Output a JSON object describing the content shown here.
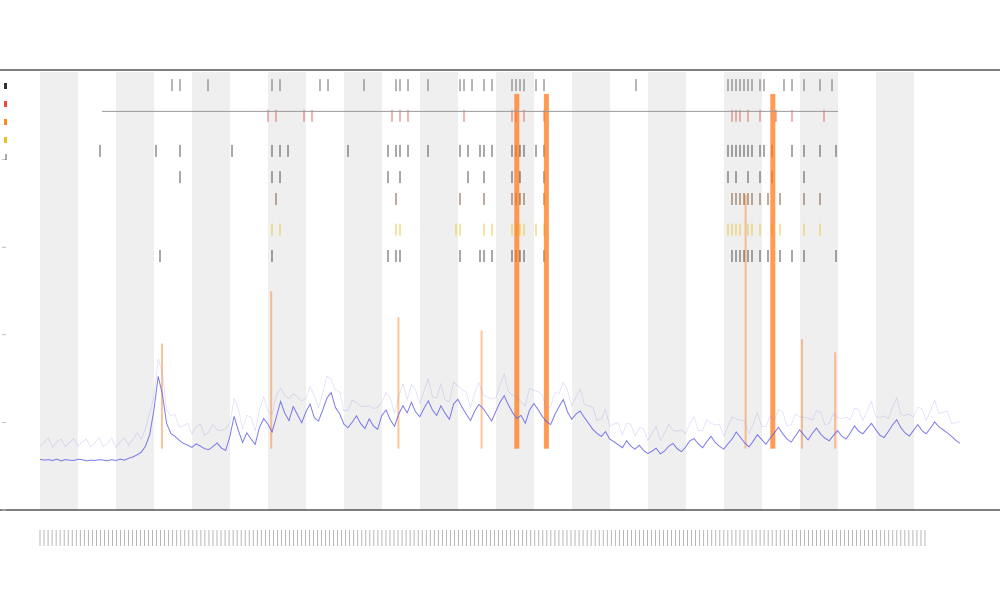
{
  "chart_data": {
    "type": "line",
    "title": "",
    "subtitles": [
      "",
      ""
    ],
    "xlabel": "",
    "ylabel": "",
    "grid": false,
    "legend_placement": "top-left",
    "colors": {
      "background": "#ffffff",
      "band_shade": "#efefef",
      "axis": "#333333",
      "threshold_line": "#9a9a9a",
      "main_series": "#5a5ae6",
      "tick_marks": "#555555",
      "ticks_red": "#e05040",
      "ticks_dark": "#333333",
      "ticks_orange": "#ff8c1a",
      "ticks_gold": "#e8c020",
      "ticks_brown": "#6b3a1a",
      "spike_series": "#ff7a1a"
    },
    "xlim": [
      0,
      230
    ],
    "ylim": [
      0,
      100
    ],
    "shaded_bands": [
      [
        0,
        9.5
      ],
      [
        19,
        28.5
      ],
      [
        38,
        47.5
      ],
      [
        57,
        66.5
      ],
      [
        76,
        85.5
      ],
      [
        95,
        104.5
      ],
      [
        114,
        123.5
      ],
      [
        133,
        142.5
      ],
      [
        152,
        161.5
      ],
      [
        171,
        180.5
      ],
      [
        190,
        199.5
      ],
      [
        209,
        218.5
      ]
    ],
    "threshold_y": 91,
    "threshold_x_range": [
      15.5,
      199.5
    ],
    "series": [
      {
        "name": "",
        "kind": "baseline",
        "values": [
          11.6,
          11.4,
          11.5,
          11.3,
          11.6,
          11.2,
          11.5,
          11.4,
          11.3,
          11.6,
          11.5,
          11.2,
          11.4,
          11.3,
          11.5,
          11.4,
          11.2,
          11.5,
          11.3,
          11.6,
          11.4,
          11.8,
          12.1,
          12.6,
          13.2,
          14.6,
          17.2,
          22.8,
          30.5,
          26.4,
          19.8,
          17.5,
          16.8,
          15.9,
          15.2,
          14.8,
          14.3,
          15.1,
          14.6,
          14.0,
          13.8,
          14.5,
          15.3,
          14.1,
          13.6,
          16.8,
          21.4,
          18.2,
          15.4,
          17.6,
          16.2,
          15.0,
          18.8,
          20.9,
          19.6,
          17.8,
          21.2,
          24.8,
          22.1,
          20.4,
          23.6,
          21.8,
          19.9,
          22.4,
          24.2,
          21.1,
          20.3,
          22.9,
          25.6,
          26.8,
          23.4,
          22.0,
          19.6,
          18.8,
          20.1,
          21.5,
          19.7,
          18.6,
          20.8,
          19.2,
          18.4,
          21.6,
          22.8,
          20.6,
          19.1,
          21.9,
          23.8,
          22.2,
          24.6,
          22.4,
          21.3,
          23.2,
          24.9,
          22.8,
          21.6,
          23.8,
          22.1,
          20.7,
          24.2,
          25.3,
          23.5,
          21.9,
          20.4,
          22.6,
          24.1,
          23.2,
          21.8,
          20.3,
          22.5,
          24.6,
          26.1,
          24.0,
          22.2,
          20.9,
          21.6,
          19.8,
          22.8,
          24.3,
          23.0,
          21.4,
          20.2,
          19.5,
          21.8,
          23.6,
          25.2,
          22.4,
          20.7,
          21.9,
          22.6,
          21.1,
          19.8,
          18.4,
          17.5,
          16.8,
          17.9,
          16.2,
          15.6,
          14.9,
          14.2,
          15.8,
          14.6,
          13.9,
          14.8,
          13.6,
          12.9,
          13.4,
          14.1,
          12.8,
          13.5,
          14.6,
          15.2,
          14.0,
          13.3,
          14.4,
          15.8,
          16.3,
          15.1,
          14.2,
          15.6,
          16.8,
          15.4,
          14.6,
          13.9,
          15.1,
          16.2,
          17.8,
          16.5,
          15.3,
          14.4,
          15.7,
          17.2,
          16.1,
          15.0,
          16.4,
          17.6,
          18.9,
          17.4,
          16.2,
          15.5,
          16.9,
          18.3,
          17.1,
          16.0,
          17.5,
          18.7,
          17.3,
          16.4,
          15.8,
          17.0,
          18.1,
          16.9,
          16.2,
          17.6,
          19.2,
          18.0,
          17.4,
          18.6,
          19.8,
          18.4,
          17.1,
          16.5,
          17.9,
          19.4,
          20.6,
          18.8,
          17.6,
          16.9,
          18.2,
          19.5,
          18.1,
          17.4,
          18.7,
          20.1,
          19.0,
          18.3,
          17.6,
          16.8,
          15.9,
          15.2
        ]
      },
      {
        "name": "",
        "kind": "spikes",
        "points": [
          [
            30.5,
            38
          ],
          [
            57.8,
            50
          ],
          [
            89.6,
            44
          ],
          [
            110.4,
            41
          ],
          [
            119.2,
            95
          ],
          [
            126.6,
            95
          ],
          [
            176.4,
            72
          ],
          [
            183.2,
            95
          ],
          [
            190.5,
            39
          ],
          [
            198.8,
            36
          ]
        ]
      }
    ],
    "tick_rows": [
      {
        "color": "#555555",
        "y": 97,
        "xs": [
          33,
          35,
          42,
          58,
          60,
          70,
          72,
          81,
          89,
          90,
          92,
          97,
          105,
          106,
          108,
          111,
          113,
          118,
          119,
          120,
          121,
          124,
          126,
          149,
          172,
          173,
          174,
          175,
          176,
          177,
          178,
          180,
          181,
          186,
          188,
          191,
          195,
          198
        ]
      },
      {
        "color": "#e05040",
        "y": 90,
        "xs": [
          57,
          59,
          66,
          68,
          88,
          90,
          92,
          106,
          118,
          119,
          121,
          126,
          173,
          174,
          175,
          177,
          180,
          184,
          188,
          196
        ]
      },
      {
        "color": "#333333",
        "y": 82,
        "xs": [
          15,
          29,
          35,
          48,
          58,
          60,
          62,
          77,
          87,
          89,
          90,
          92,
          97,
          105,
          107,
          110,
          111,
          113,
          118,
          119,
          120,
          121,
          124,
          126,
          172,
          173,
          174,
          175,
          176,
          177,
          178,
          180,
          181,
          183,
          188,
          191,
          195,
          199
        ]
      },
      {
        "color": "#333333",
        "y": 76,
        "xs": [
          35,
          58,
          60,
          87,
          90,
          107,
          111,
          118,
          120,
          126,
          172,
          174,
          177,
          180,
          183,
          191
        ]
      },
      {
        "color": "#6b3a1a",
        "y": 71,
        "xs": [
          59,
          89,
          105,
          111,
          118,
          119,
          120,
          121,
          126,
          173,
          174,
          175,
          176,
          177,
          178,
          180,
          182,
          185,
          191,
          195
        ]
      },
      {
        "color": "#e8c020",
        "y": 64,
        "xs": [
          58,
          60,
          89,
          90,
          104,
          105,
          111,
          113,
          118,
          119,
          120,
          121,
          124,
          126,
          172,
          173,
          174,
          175,
          177,
          178,
          180,
          183,
          185,
          191,
          195
        ]
      },
      {
        "color": "#333333",
        "y": 58,
        "xs": [
          30,
          58,
          87,
          89,
          90,
          105,
          110,
          111,
          113,
          118,
          119,
          120,
          121,
          126,
          173,
          174,
          175,
          176,
          177,
          178,
          180,
          182,
          185,
          188,
          191,
          199
        ]
      }
    ],
    "legend_entries": [
      "",
      "",
      "",
      ""
    ],
    "x_tick_labels": [],
    "y_tick_labels": []
  }
}
